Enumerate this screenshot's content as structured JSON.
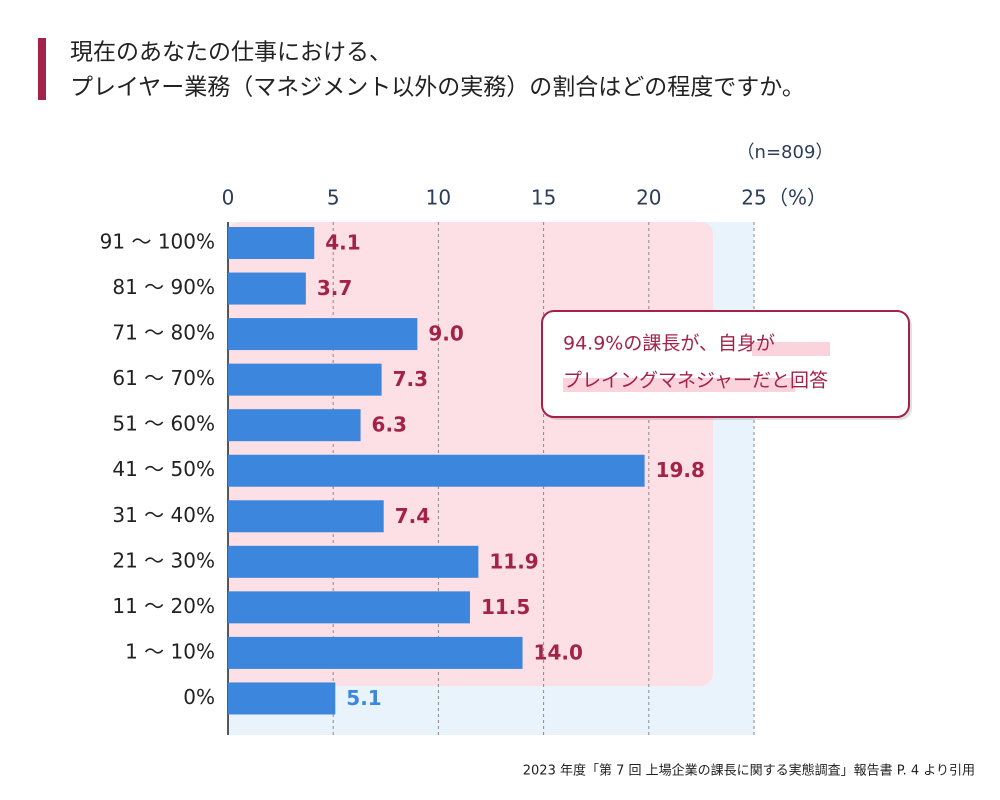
{
  "chart_data": {
    "type": "bar",
    "orientation": "horizontal",
    "title_lines": [
      "現在のあなたの仕事における、",
      "プレイヤー業務（マネジメント以外の実務）の割合はどの程度ですか。"
    ],
    "note": "（n=809）",
    "x_unit": "（%）",
    "categories": [
      "91 ～ 100%",
      "81 ～ 90%",
      "71 ～ 80%",
      "61 ～ 70%",
      "51 ～ 60%",
      "41 ～ 50%",
      "31 ～ 40%",
      "21 ～ 30%",
      "11 ～ 20%",
      "1 ～ 10%",
      "0%"
    ],
    "values": [
      4.1,
      3.7,
      9.0,
      7.3,
      6.3,
      19.8,
      7.4,
      11.9,
      11.5,
      14.0,
      5.1
    ],
    "value_labels": [
      "4.1",
      "3.7",
      "9.0",
      "7.3",
      "6.3",
      "19.8",
      "7.4",
      "11.9",
      "11.5",
      "14.0",
      "5.1"
    ],
    "value_label_colors": [
      "#a3224a",
      "#a3224a",
      "#a3224a",
      "#a3224a",
      "#a3224a",
      "#a3224a",
      "#a3224a",
      "#a3224a",
      "#a3224a",
      "#a3224a",
      "#3d86dd"
    ],
    "color": "#3d86dd",
    "xlim": [
      0,
      25
    ],
    "xticks": [
      0,
      5,
      10,
      15,
      20,
      25
    ],
    "grid": true,
    "callout_lines": [
      "94.9%の課長が、自身が",
      "プレイングマネジャーだと回答"
    ],
    "source": "2023 年度「第 7 回 上場企業の課長に関する実態調査」報告書 P. 4 より引用"
  }
}
